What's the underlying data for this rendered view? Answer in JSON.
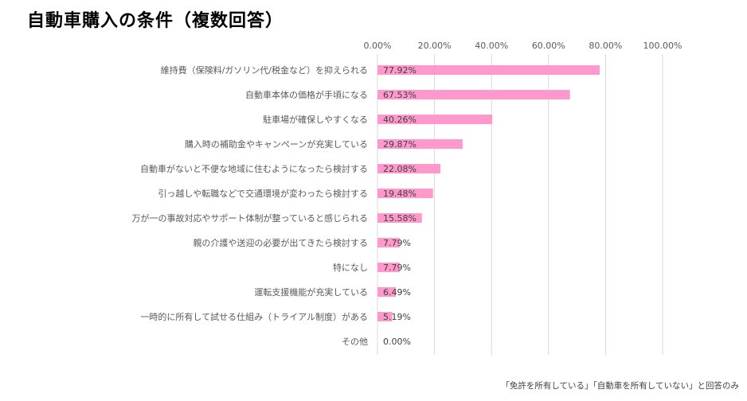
{
  "title": "自動車購入の条件（複数回答）",
  "footnote": "「免許を所有している」「自動車を所有していない」と回答のみ",
  "colors": {
    "bar": "#ff99cc",
    "grid": "#d9d9d9",
    "text": "#595959"
  },
  "chart_data": {
    "type": "bar",
    "orientation": "horizontal",
    "title": "自動車購入の条件（複数回答）",
    "xlim": [
      0,
      100
    ],
    "ticks": [
      "0.00%",
      "20.00%",
      "40.00%",
      "60.00%",
      "80.00%",
      "100.00%"
    ],
    "tick_values": [
      0,
      20,
      40,
      60,
      80,
      100
    ],
    "axis_position": "top",
    "grid": true,
    "categories": [
      "維持費（保険料/ガソリン代/税金など）を抑えられる",
      "自動車本体の価格が手頃になる",
      "駐車場が確保しやすくなる",
      "購入時の補助金やキャンペーンが充実している",
      "自動車がないと不便な地域に住むようになったら検討する",
      "引っ越しや転職などで交通環境が変わったら検討する",
      "万が一の事故対応やサポート体制が整っていると感じられる",
      "親の介護や送迎の必要が出てきたら検討する",
      "特になし",
      "運転支援機能が充実している",
      "一時的に所有して試せる仕組み（トライアル制度）がある",
      "その他"
    ],
    "values": [
      77.92,
      67.53,
      40.26,
      29.87,
      22.08,
      19.48,
      15.58,
      7.79,
      7.79,
      6.49,
      5.19,
      0.0
    ],
    "labels": [
      "77.92%",
      "67.53%",
      "40.26%",
      "29.87%",
      "22.08%",
      "19.48%",
      "15.58%",
      "7.79%",
      "7.79%",
      "6.49%",
      "5.19%",
      "0.00%"
    ]
  }
}
